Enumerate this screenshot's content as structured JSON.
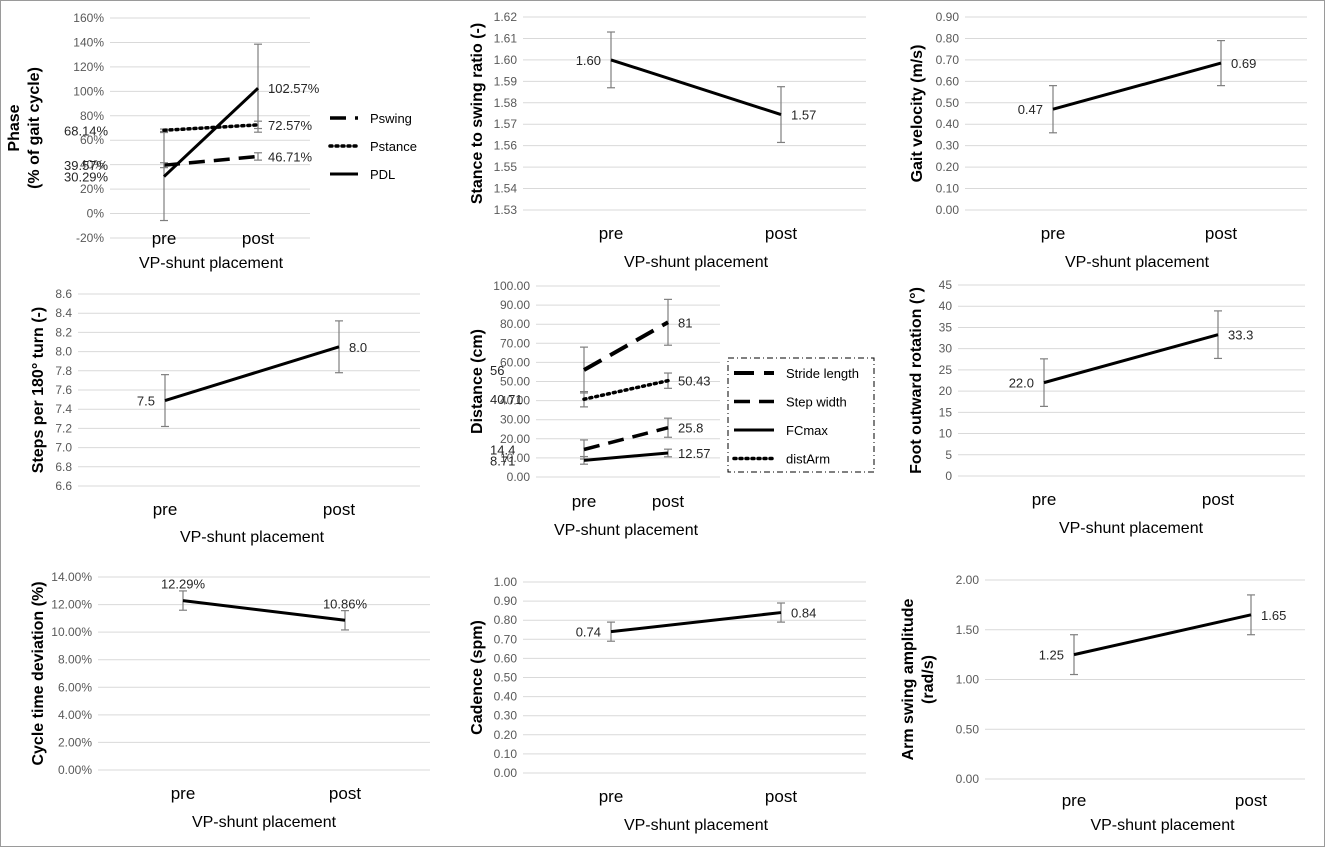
{
  "figure": {
    "background": "#ffffff",
    "line_color": "#000000",
    "grid_color": "#d9d9d9",
    "error_bar_color": "#7f7f7f"
  },
  "chart_data": [
    {
      "id": "phase",
      "type": "line",
      "categories": [
        "pre",
        "post"
      ],
      "xlabel": "VP-shunt placement",
      "ylabel": [
        "Phase",
        "(% of gait cycle)"
      ],
      "ylim": [
        -0.2,
        1.6
      ],
      "yticks": [
        -0.2,
        0,
        0.2,
        0.4,
        0.6,
        0.8,
        1.0,
        1.2,
        1.4,
        1.6
      ],
      "tick_format": "pct0",
      "grid": true,
      "series": [
        {
          "name": "Pswing",
          "style": "dash",
          "values": [
            0.3957,
            0.4671
          ],
          "labels": [
            "39.57%",
            "46.71%"
          ],
          "errors": [
            0.02,
            0.03
          ]
        },
        {
          "name": "Pstance",
          "style": "dot",
          "values": [
            0.6814,
            0.7257
          ],
          "labels": [
            "68.14%",
            "72.57%"
          ],
          "errors": [
            0.01,
            0.03
          ]
        },
        {
          "name": "PDL",
          "style": "solid",
          "values": [
            0.3029,
            1.0257
          ],
          "labels": [
            "30.29%",
            "102.57%"
          ],
          "errors": [
            0.36,
            0.36
          ]
        }
      ],
      "legend": {
        "position": "right",
        "entries": [
          "Pswing",
          "Pstance",
          "PDL"
        ]
      }
    },
    {
      "id": "stance_swing",
      "type": "line",
      "categories": [
        "pre",
        "post"
      ],
      "xlabel": "VP-shunt placement",
      "ylabel": [
        "Stance to swing ratio (-)"
      ],
      "ylim": [
        1.53,
        1.62
      ],
      "yticks": [
        1.53,
        1.54,
        1.55,
        1.56,
        1.57,
        1.58,
        1.59,
        1.6,
        1.61,
        1.62
      ],
      "tick_format": "fix2",
      "grid": true,
      "series": [
        {
          "name": "Stance to swing ratio",
          "style": "solid",
          "values": [
            1.6,
            1.5745
          ],
          "labels": [
            "1.60",
            "1.57"
          ],
          "errors": [
            0.013,
            0.013
          ]
        }
      ]
    },
    {
      "id": "gait_velocity",
      "type": "line",
      "categories": [
        "pre",
        "post"
      ],
      "xlabel": "VP-shunt placement",
      "ylabel": [
        "Gait velocity (m/s)"
      ],
      "ylim": [
        0,
        0.9
      ],
      "yticks": [
        0,
        0.1,
        0.2,
        0.3,
        0.4,
        0.5,
        0.6,
        0.7,
        0.8,
        0.9
      ],
      "tick_format": "fix2",
      "grid": true,
      "series": [
        {
          "name": "Gait velocity",
          "style": "solid",
          "values": [
            0.47,
            0.685
          ],
          "labels": [
            "0.47",
            "0.69"
          ],
          "errors": [
            0.11,
            0.105
          ]
        }
      ]
    },
    {
      "id": "steps_turn",
      "type": "line",
      "categories": [
        "pre",
        "post"
      ],
      "xlabel": "VP-shunt placement",
      "ylabel": [
        "Steps per 180° turn (-)"
      ],
      "ylim": [
        6.6,
        8.6
      ],
      "yticks": [
        6.6,
        6.8,
        7.0,
        7.2,
        7.4,
        7.6,
        7.8,
        8.0,
        8.2,
        8.4,
        8.6
      ],
      "tick_format": "fix1",
      "grid": true,
      "series": [
        {
          "name": "Steps per 180° turn",
          "style": "solid",
          "values": [
            7.49,
            8.05
          ],
          "labels": [
            "7.5",
            "8.0"
          ],
          "errors": [
            0.27,
            0.27
          ]
        }
      ]
    },
    {
      "id": "distance",
      "type": "line",
      "categories": [
        "pre",
        "post"
      ],
      "xlabel": "VP-shunt placement",
      "ylabel": [
        "Distance (cm)"
      ],
      "ylim": [
        0,
        100
      ],
      "yticks": [
        0,
        10,
        20,
        30,
        40,
        50,
        60,
        70,
        80,
        90,
        100
      ],
      "tick_format": "fix2",
      "grid": true,
      "series": [
        {
          "name": "Stride length",
          "style": "longdash",
          "values": [
            56,
            81
          ],
          "labels": [
            "56",
            "81"
          ],
          "errors": [
            12,
            12
          ]
        },
        {
          "name": "Step width",
          "style": "dash",
          "values": [
            14.4,
            25.8
          ],
          "labels": [
            "14.4",
            "25.8"
          ],
          "errors": [
            5,
            5
          ]
        },
        {
          "name": "FCmax",
          "style": "solid",
          "values": [
            8.71,
            12.57
          ],
          "labels": [
            "8.71",
            "12.57"
          ],
          "errors": [
            2,
            2
          ]
        },
        {
          "name": "distArm",
          "style": "dot",
          "values": [
            40.71,
            50.43
          ],
          "labels": [
            "40.71",
            "50.43"
          ],
          "errors": [
            4,
            4
          ]
        }
      ],
      "legend": {
        "position": "right",
        "entries": [
          "Stride length",
          "Step width",
          "FCmax",
          "distArm"
        ]
      }
    },
    {
      "id": "foot_rotation",
      "type": "line",
      "categories": [
        "pre",
        "post"
      ],
      "xlabel": "VP-shunt placement",
      "ylabel": [
        "Foot outward rotation   (°)"
      ],
      "ylim": [
        0,
        45
      ],
      "yticks": [
        0,
        5,
        10,
        15,
        20,
        25,
        30,
        35,
        40,
        45
      ],
      "tick_format": "int",
      "grid": true,
      "series": [
        {
          "name": "Foot outward rotation",
          "style": "solid",
          "values": [
            22.0,
            33.3
          ],
          "labels": [
            "22.0",
            "33.3"
          ],
          "errors": [
            5.6,
            5.6
          ]
        }
      ]
    },
    {
      "id": "cycle_time",
      "type": "line",
      "categories": [
        "pre",
        "post"
      ],
      "xlabel": "VP-shunt placement",
      "ylabel": [
        "Cycle time deviation  (%)"
      ],
      "ylim": [
        0,
        0.14
      ],
      "yticks": [
        0,
        0.02,
        0.04,
        0.06,
        0.08,
        0.1,
        0.12,
        0.14
      ],
      "tick_format": "pct2",
      "grid": true,
      "series": [
        {
          "name": "Cycle time deviation",
          "style": "solid",
          "values": [
            0.1229,
            0.1086
          ],
          "labels": [
            "12.29%",
            "10.86%"
          ],
          "label_pos": "above",
          "errors": [
            0.007,
            0.007
          ]
        }
      ]
    },
    {
      "id": "cadence",
      "type": "line",
      "categories": [
        "pre",
        "post"
      ],
      "xlabel": "VP-shunt placement",
      "ylabel": [
        "Cadence  (spm)"
      ],
      "ylim": [
        0,
        1.0
      ],
      "yticks": [
        0,
        0.1,
        0.2,
        0.3,
        0.4,
        0.5,
        0.6,
        0.7,
        0.8,
        0.9,
        1.0
      ],
      "tick_format": "fix2",
      "grid": true,
      "series": [
        {
          "name": "Cadence",
          "style": "solid",
          "values": [
            0.74,
            0.84
          ],
          "labels": [
            "0.74",
            "0.84"
          ],
          "errors": [
            0.05,
            0.05
          ]
        }
      ]
    },
    {
      "id": "arm_swing",
      "type": "line",
      "categories": [
        "pre",
        "post"
      ],
      "xlabel": "VP-shunt placement",
      "ylabel": [
        "Arm swing amplitude",
        "(rad/s)"
      ],
      "ylim": [
        0,
        2.0
      ],
      "yticks": [
        0,
        0.5,
        1.0,
        1.5,
        2.0
      ],
      "tick_format": "fix2",
      "grid": true,
      "series": [
        {
          "name": "Arm swing amplitude",
          "style": "solid",
          "values": [
            1.25,
            1.65
          ],
          "labels": [
            "1.25",
            "1.65"
          ],
          "errors": [
            0.2,
            0.2
          ]
        }
      ]
    }
  ]
}
